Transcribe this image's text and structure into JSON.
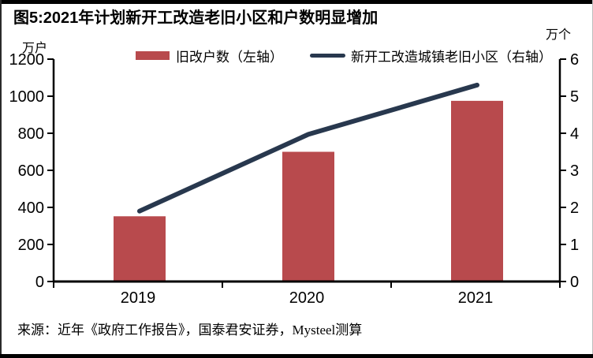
{
  "title": "图5:2021年计划新开工改造老旧小区和户数明显增加",
  "source": "来源：近年《政府工作报告》，国泰君安证券，Mysteel测算",
  "legend": {
    "bar_label": "旧改户数（左轴）",
    "line_label": "新开工改造城镇老旧小区（右轴）"
  },
  "axes": {
    "left_unit": "万户",
    "right_unit": "万个"
  },
  "colors": {
    "bar": "#B84A4D",
    "line": "#28384E",
    "axis": "#000000"
  },
  "chart_data": {
    "type": "bar+line",
    "categories": [
      "2019",
      "2020",
      "2021"
    ],
    "series": [
      {
        "name": "旧改户数（左轴）",
        "type": "bar",
        "axis": "left",
        "values": [
          352,
          700,
          975
        ],
        "color": "#B84A4D"
      },
      {
        "name": "新开工改造城镇老旧小区（右轴）",
        "type": "line",
        "axis": "right",
        "values": [
          1.9,
          3.97,
          5.3
        ],
        "color": "#28384E"
      }
    ],
    "title": "图5:2021年计划新开工改造老旧小区和户数明显增加",
    "xlabel": "",
    "left_ylabel": "万户",
    "right_ylabel": "万个",
    "left_ylim": [
      0,
      1200
    ],
    "left_step": 200,
    "right_ylim": [
      0,
      6
    ],
    "right_step": 1,
    "grid": false,
    "legend_position": "top"
  }
}
